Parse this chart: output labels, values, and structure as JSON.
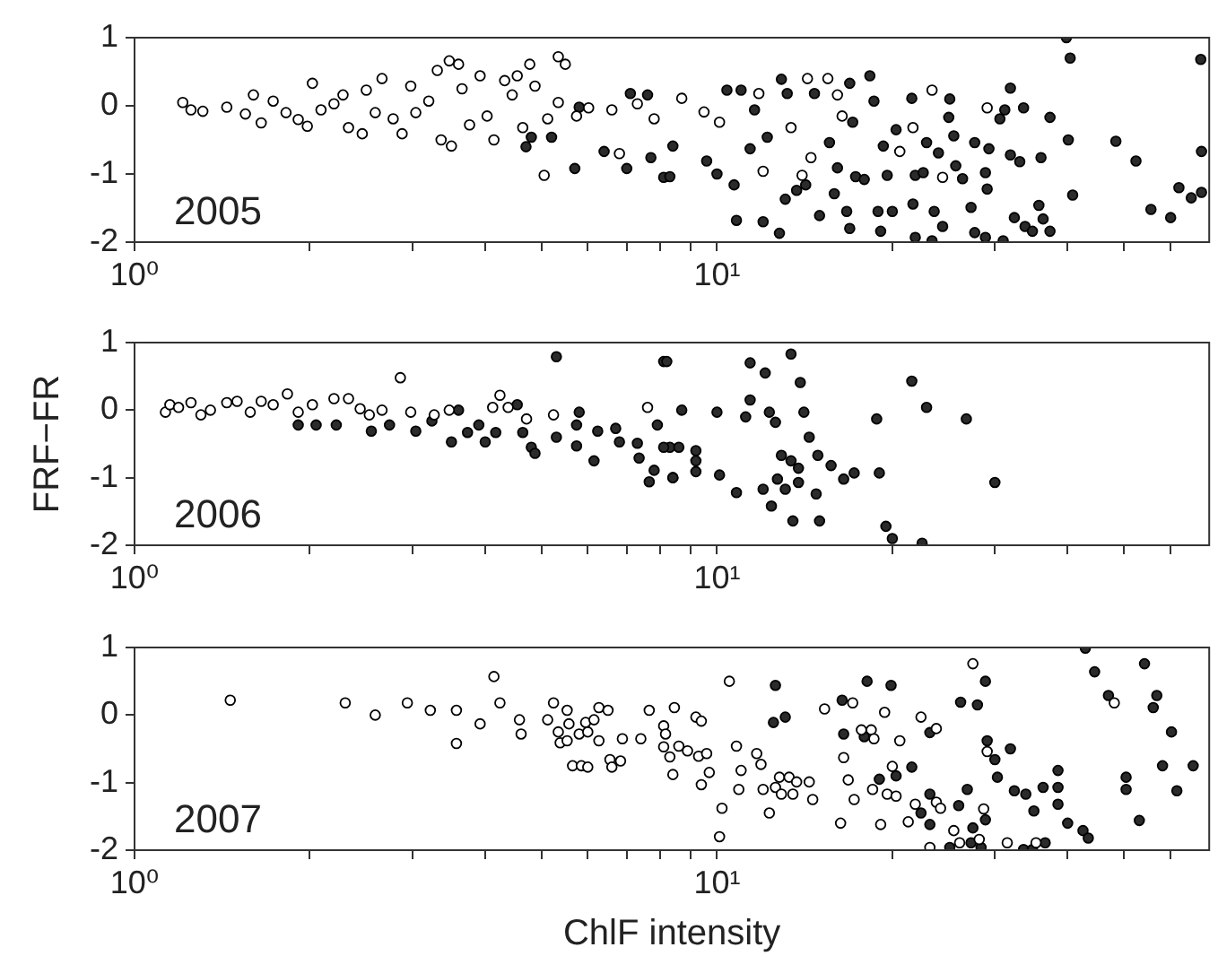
{
  "chart_data": [
    {
      "type": "scatter",
      "log": "x",
      "marker": "circle",
      "xlim": [
        1,
        70
      ],
      "ylim": [
        -2,
        1
      ],
      "yticks": [
        -2,
        -1,
        0,
        1
      ],
      "xticks": [
        {
          "value": 1,
          "label": "10⁰"
        },
        {
          "value": 2,
          "label": null
        },
        {
          "value": 3,
          "label": null
        },
        {
          "value": 4,
          "label": null
        },
        {
          "value": 5,
          "label": null
        },
        {
          "value": 6,
          "label": null
        },
        {
          "value": 7,
          "label": null
        },
        {
          "value": 8,
          "label": null
        },
        {
          "value": 9,
          "label": null
        },
        {
          "value": 10,
          "label": "10¹"
        },
        {
          "value": 20,
          "label": null
        },
        {
          "value": 30,
          "label": null
        },
        {
          "value": 40,
          "label": null
        },
        {
          "value": 50,
          "label": null
        },
        {
          "value": 60,
          "label": null
        }
      ],
      "annotations": [
        "2005"
      ],
      "series": [
        {
          "type": "scatter",
          "color": "#ffffff",
          "x": [
            1.21,
            1.25,
            1.31,
            1.44,
            1.55,
            1.6,
            1.65,
            1.73,
            1.82,
            1.91,
            1.98,
            2.02,
            2.09,
            2.2,
            2.28,
            2.33,
            2.46,
            2.5,
            2.59,
            2.66,
            2.78,
            2.88,
            2.98,
            3.04,
            3.2,
            3.31,
            3.36,
            3.47,
            3.5,
            3.6,
            3.65,
            3.76,
            3.92,
            4.03,
            4.14,
            4.32,
            4.45,
            4.54,
            4.64,
            4.77,
            4.87,
            5.05,
            5.12,
            5.34,
            5.49,
            5.34,
            5.74,
            6.02,
            6.6,
            6.8,
            7.3,
            7.8,
            8.7,
            9.5,
            10.1,
            11.8,
            12,
            14.3,
            14.5,
            15.5,
            16.1,
            16.4,
            20.6,
            21.7,
            23.4,
            24.4,
            29.1,
            14,
            13.4
          ],
          "values": [
            0.05,
            -0.06,
            -0.08,
            -0.02,
            -0.12,
            0.16,
            -0.25,
            0.07,
            -0.1,
            -0.2,
            -0.3,
            0.33,
            -0.06,
            0.03,
            0.16,
            -0.32,
            -0.41,
            0.23,
            -0.1,
            0.4,
            -0.19,
            -0.41,
            0.29,
            -0.1,
            0.07,
            0.52,
            -0.5,
            0.66,
            -0.59,
            0.61,
            0.25,
            -0.28,
            0.44,
            -0.15,
            -0.5,
            0.37,
            0.16,
            0.44,
            -0.32,
            0.61,
            0.29,
            -1.02,
            -0.19,
            0.72,
            0.61,
            0.05,
            -0.15,
            -0.03,
            -0.06,
            -0.7,
            0.03,
            -0.19,
            0.11,
            -0.09,
            -0.24,
            0.18,
            -0.96,
            0.4,
            -0.76,
            0.4,
            0.16,
            -0.15,
            -0.67,
            -0.32,
            0.23,
            -1.05,
            -0.03,
            -1.02,
            -0.32
          ]
        },
        {
          "type": "scatter",
          "color": "#2b2b2b",
          "x": [
            4.7,
            4.8,
            5.2,
            5.7,
            5.8,
            6.4,
            7,
            7.1,
            7.6,
            7.7,
            8.1,
            8.3,
            8.4,
            9.6,
            10,
            10.4,
            10.7,
            10.8,
            11,
            11.4,
            11.6,
            12,
            12.2,
            12.8,
            12.9,
            13.1,
            13.2,
            13.7,
            14.2,
            14.7,
            15,
            15.6,
            15.9,
            16.1,
            16.7,
            16.9,
            17.1,
            16.9,
            17.3,
            17.9,
            18.3,
            18.6,
            18.9,
            19.3,
            19.6,
            19.1,
            20,
            20.3,
            21.6,
            21.7,
            21.9,
            21.9,
            22.6,
            22.9,
            23.4,
            23.6,
            24,
            24.4,
            25.1,
            25,
            25.5,
            25.7,
            26.4,
            27.7,
            27.3,
            27.7,
            28.9,
            29.1,
            29.3,
            28.9,
            30.6,
            31,
            31.2,
            31.9,
            31.9,
            32.4,
            33.1,
            33.6,
            33.8,
            34.8,
            35.7,
            36,
            36.3,
            37.3,
            37.3,
            39.8,
            40.4,
            40.1,
            40.8,
            48.4,
            52.4,
            55.6,
            60.1,
            62.1,
            65.2,
            67.7,
            67.9,
            67.9
          ],
          "values": [
            -0.6,
            -0.46,
            -0.46,
            -0.92,
            -0.02,
            -0.67,
            -0.92,
            0.18,
            0.16,
            -0.76,
            -1.05,
            -1.04,
            -0.59,
            -0.81,
            -1,
            0.23,
            -1.16,
            -1.68,
            0.23,
            -0.63,
            -0.06,
            -1.7,
            -0.46,
            -1.87,
            0.39,
            -1.37,
            0.18,
            -1.24,
            -1.16,
            0.18,
            -1.61,
            -0.54,
            -1.29,
            -0.91,
            -1.55,
            0.33,
            -0.24,
            -1.8,
            -1.04,
            -1.08,
            0.44,
            0.07,
            -1.55,
            -0.59,
            -1.02,
            -1.84,
            -1.55,
            -0.35,
            0.11,
            -1.44,
            -1.02,
            -1.93,
            -0.98,
            -0.54,
            -1.98,
            -1.55,
            -0.69,
            -1.77,
            0.1,
            -0.17,
            -0.44,
            -0.88,
            -1.07,
            -0.54,
            -1.49,
            -1.86,
            -0.98,
            -1.22,
            -0.63,
            -1.93,
            -0.19,
            -1.98,
            -0.06,
            0.26,
            -0.72,
            -1.64,
            -0.82,
            -0.03,
            -1.77,
            -1.84,
            -1.46,
            -0.76,
            -1.66,
            -1.84,
            -0.17,
            1,
            0.7,
            -0.5,
            -1.31,
            -0.52,
            -0.81,
            -1.52,
            -1.64,
            -1.2,
            -1.35,
            0.68,
            -0.67,
            -1.27
          ]
        }
      ]
    },
    {
      "type": "scatter",
      "log": "x",
      "marker": "circle",
      "xlim": [
        1,
        70
      ],
      "ylim": [
        -2,
        1
      ],
      "yticks": [
        -2,
        -1,
        0,
        1
      ],
      "ylabel": "FRF−FR",
      "xticks": [
        {
          "value": 1,
          "label": "10⁰"
        },
        {
          "value": 2,
          "label": null
        },
        {
          "value": 3,
          "label": null
        },
        {
          "value": 4,
          "label": null
        },
        {
          "value": 5,
          "label": null
        },
        {
          "value": 6,
          "label": null
        },
        {
          "value": 7,
          "label": null
        },
        {
          "value": 8,
          "label": null
        },
        {
          "value": 9,
          "label": null
        },
        {
          "value": 10,
          "label": "10¹"
        },
        {
          "value": 20,
          "label": null
        },
        {
          "value": 30,
          "label": null
        },
        {
          "value": 40,
          "label": null
        },
        {
          "value": 50,
          "label": null
        },
        {
          "value": 60,
          "label": null
        }
      ],
      "annotations": [
        "2006"
      ],
      "series": [
        {
          "type": "scatter",
          "color": "#ffffff",
          "x": [
            1.13,
            1.15,
            1.19,
            1.25,
            1.3,
            1.35,
            1.44,
            1.5,
            1.58,
            1.65,
            1.73,
            1.83,
            1.91,
            2.02,
            2.2,
            2.33,
            2.44,
            2.53,
            2.66,
            2.86,
            2.98,
            3.27,
            3.47,
            4.12,
            4.24,
            4.38,
            4.71,
            5.24,
            7.6
          ],
          "values": [
            -0.03,
            0.08,
            0.04,
            0.11,
            -0.07,
            0,
            0.11,
            0.13,
            -0.03,
            0.13,
            0.08,
            0.24,
            -0.03,
            0.08,
            0.17,
            0.17,
            0.02,
            -0.07,
            0,
            0.48,
            -0.03,
            -0.07,
            0,
            0.04,
            0.22,
            0.04,
            -0.13,
            -0.07,
            0.04
          ]
        },
        {
          "type": "scatter",
          "color": "#2b2b2b",
          "x": [
            1.91,
            2.05,
            2.22,
            2.55,
            2.74,
            3.04,
            3.24,
            3.5,
            3.6,
            3.73,
            3.9,
            4,
            4.17,
            4.54,
            4.64,
            4.8,
            4.87,
            5.3,
            5.3,
            5.74,
            5.8,
            5.74,
            6.15,
            6.24,
            6.7,
            6.8,
            7.3,
            7.35,
            7.65,
            7.8,
            7.9,
            8.1,
            8.4,
            8.3,
            8.2,
            8.7,
            8.1,
            8.6,
            8.4,
            9.2,
            9.2,
            9.2,
            10,
            10.1,
            10.8,
            11.4,
            11.2,
            11.4,
            12,
            12.1,
            12.3,
            12.4,
            12.6,
            12.7,
            12.9,
            13.1,
            13.4,
            13.4,
            13.5,
            13.8,
            13.8,
            13.9,
            14.1,
            14.4,
            14.8,
            14.9,
            15,
            15.7,
            16.5,
            17.2,
            18.8,
            19,
            19.5,
            21.6,
            22.9,
            26.8,
            30,
            20,
            22.5
          ],
          "values": [
            -0.22,
            -0.22,
            -0.22,
            -0.31,
            -0.22,
            -0.31,
            -0.16,
            -0.47,
            0,
            -0.33,
            -0.22,
            -0.47,
            -0.33,
            0.08,
            -0.33,
            -0.55,
            -0.64,
            0.79,
            -0.4,
            -0.22,
            -0.03,
            -0.53,
            -0.75,
            -0.31,
            -0.27,
            -0.47,
            -0.49,
            -0.71,
            -1.06,
            -0.89,
            -0.22,
            0.72,
            -1,
            -0.55,
            0.72,
            0,
            -0.55,
            -0.55,
            -1,
            -0.6,
            -0.75,
            -0.91,
            -0.03,
            -0.96,
            -1.22,
            0.15,
            -0.1,
            0.7,
            -1.17,
            0.55,
            -0.03,
            -1.42,
            -0.18,
            -1.02,
            -0.67,
            -1.17,
            0.83,
            -0.75,
            -1.64,
            -0.86,
            -1.07,
            0.41,
            -0.03,
            -0.4,
            -1.24,
            -0.67,
            -1.64,
            -0.82,
            -1.02,
            -0.93,
            -0.13,
            -0.93,
            -1.72,
            0.43,
            0.04,
            -0.13,
            -1.07,
            -1.9,
            -1.97
          ]
        }
      ]
    },
    {
      "type": "scatter",
      "log": "x",
      "marker": "circle",
      "xlim": [
        1,
        70
      ],
      "ylim": [
        -2,
        1
      ],
      "yticks": [
        -2,
        -1,
        0,
        1
      ],
      "xlabel": "ChlF intensity",
      "xticks": [
        {
          "value": 1,
          "label": "10⁰"
        },
        {
          "value": 2,
          "label": null
        },
        {
          "value": 3,
          "label": null
        },
        {
          "value": 4,
          "label": null
        },
        {
          "value": 5,
          "label": null
        },
        {
          "value": 6,
          "label": null
        },
        {
          "value": 7,
          "label": null
        },
        {
          "value": 8,
          "label": null
        },
        {
          "value": 9,
          "label": null
        },
        {
          "value": 10,
          "label": "10¹"
        },
        {
          "value": 20,
          "label": null
        },
        {
          "value": 30,
          "label": null
        },
        {
          "value": 40,
          "label": null
        },
        {
          "value": 50,
          "label": null
        },
        {
          "value": 60,
          "label": null
        }
      ],
      "annotations": [
        "2007"
      ],
      "series": [
        {
          "type": "scatter",
          "color": "#ffffff",
          "x": [
            1.46,
            2.3,
            2.59,
            2.94,
            3.22,
            3.57,
            3.57,
            3.92,
            4.14,
            4.24,
            4.58,
            4.61,
            5.12,
            5.24,
            5.34,
            5.38,
            5.53,
            5.57,
            5.53,
            5.65,
            5.8,
            5.85,
            5.95,
            6,
            6,
            6.15,
            6.27,
            6.27,
            6.5,
            6.55,
            6.6,
            6.83,
            6.88,
            7.4,
            7.65,
            8.1,
            8.16,
            8.1,
            8.3,
            8.4,
            8.45,
            8.6,
            8.9,
            9.2,
            9.4,
            9.3,
            9.4,
            9.6,
            9.7,
            10.1,
            10.2,
            10.5,
            10.8,
            10.9,
            11,
            11.7,
            11.9,
            12,
            12.3,
            12.6,
            12.8,
            12.9,
            13.3,
            13.5,
            13.7,
            14.4,
            14.6,
            15.3,
            16.3,
            16.5,
            16.8,
            17.1,
            17.2,
            17.7,
            18.4,
            18.6,
            18.5,
            19.1,
            19.4,
            19.6,
            20,
            20.3,
            20.6,
            21.3,
            21.9,
            22.4,
            23.2,
            23.8,
            23.8,
            24.2,
            25.5,
            26.1,
            27.5,
            28.2,
            28.7,
            29.1,
            31.5,
            35.3,
            48.1
          ],
          "values": [
            0.22,
            0.18,
            0,
            0.18,
            0.07,
            0.07,
            -0.42,
            -0.13,
            0.57,
            0.18,
            -0.07,
            -0.28,
            -0.07,
            0.18,
            -0.25,
            -0.41,
            0.07,
            -0.13,
            -0.38,
            -0.75,
            -0.28,
            -0.75,
            -0.11,
            -0.77,
            -0.25,
            -0.07,
            0.11,
            -0.38,
            0.07,
            -0.66,
            -0.77,
            -0.68,
            -0.35,
            -0.35,
            0.07,
            -0.16,
            -0.28,
            -0.47,
            -0.62,
            -0.88,
            0.11,
            -0.46,
            -0.53,
            -0.03,
            -0.09,
            -0.61,
            -1.03,
            -0.57,
            -0.85,
            -1.8,
            -1.38,
            0.5,
            -0.46,
            -1.1,
            -0.82,
            -0.57,
            -0.73,
            -1.1,
            -1.45,
            -1.07,
            -0.92,
            -1.17,
            -0.92,
            -1.17,
            -0.99,
            -0.99,
            -1.25,
            0.09,
            -1.6,
            -0.63,
            -0.96,
            0.18,
            -1.25,
            -0.22,
            -0.22,
            -0.35,
            -1.1,
            -1.62,
            0.04,
            -1.17,
            -0.76,
            -1.2,
            -0.38,
            -1.58,
            -1.32,
            -0.03,
            -1.96,
            -0.2,
            -1.29,
            -1.38,
            -1.71,
            -1.89,
            0.76,
            -1.84,
            -1.39,
            -0.54,
            -1.89,
            -1.89,
            0.18
          ]
        },
        {
          "type": "scatter",
          "color": "#2b2b2b",
          "x": [
            12.6,
            12.5,
            13.1,
            16.4,
            16.5,
            17.9,
            18.1,
            19.9,
            19,
            20.3,
            21.6,
            22.4,
            23.2,
            23.2,
            23.2,
            25.1,
            26,
            26.2,
            26.9,
            27.5,
            27.3,
            28,
            28.4,
            28.9,
            28.9,
            29.1,
            30,
            30.3,
            31.9,
            32.4,
            33.6,
            33.9,
            34.8,
            35,
            36.3,
            36.6,
            38.5,
            38.5,
            38.5,
            40,
            42.5,
            43.4,
            42.9,
            44.5,
            47,
            50.4,
            50.4,
            53.1,
            54.2,
            56.1,
            56.9,
            58.2,
            60.3,
            61.6,
            65.7
          ],
          "values": [
            0.44,
            -0.11,
            -0.03,
            0.22,
            -0.28,
            -0.32,
            0.5,
            0.44,
            -0.95,
            -0.9,
            -0.77,
            -1.45,
            -1.17,
            -0.26,
            -1.62,
            -1.96,
            -1.34,
            0.19,
            -1.1,
            -1.67,
            -1.89,
            0.15,
            -1.96,
            0.5,
            -1.55,
            -0.38,
            -0.66,
            -0.92,
            -0.5,
            -1.12,
            -1.99,
            -1.17,
            -1.99,
            -1.42,
            -1.07,
            -1.89,
            -0.82,
            -1.07,
            -1.32,
            -1.6,
            -1.71,
            -1.82,
            0.99,
            0.64,
            0.29,
            -0.92,
            -1.1,
            -1.56,
            0.76,
            0.11,
            0.29,
            -0.75,
            -0.25,
            -1.12,
            -0.75
          ]
        }
      ]
    }
  ]
}
